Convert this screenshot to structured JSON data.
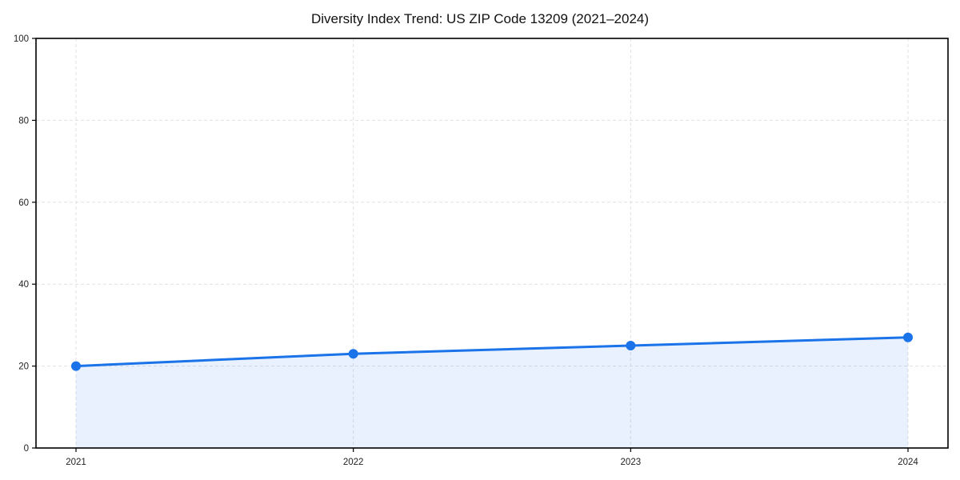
{
  "chart_data": {
    "type": "line",
    "title": "Diversity Index Trend: US ZIP Code 13209 (2021–2024)",
    "x": [
      2021,
      2022,
      2023,
      2024
    ],
    "series": [
      {
        "name": "Diversity Index",
        "values": [
          20,
          23,
          25,
          27
        ]
      }
    ],
    "xlabel": "",
    "ylabel": "",
    "ylim": [
      0,
      100
    ],
    "yticks": [
      0,
      20,
      40,
      60,
      80,
      100
    ],
    "grid": true,
    "grid_style": "dashed",
    "area_fill": true,
    "markers": true,
    "legend_position": "none",
    "colors": {
      "line": "#1a73e8",
      "marker": "#1a73e8",
      "area": "#1a73e8",
      "area_opacity": 0.1,
      "grid": "#e1e1e1",
      "axis": "#000000",
      "text": "#222222",
      "title": "#111111",
      "background": "#ffffff"
    }
  }
}
